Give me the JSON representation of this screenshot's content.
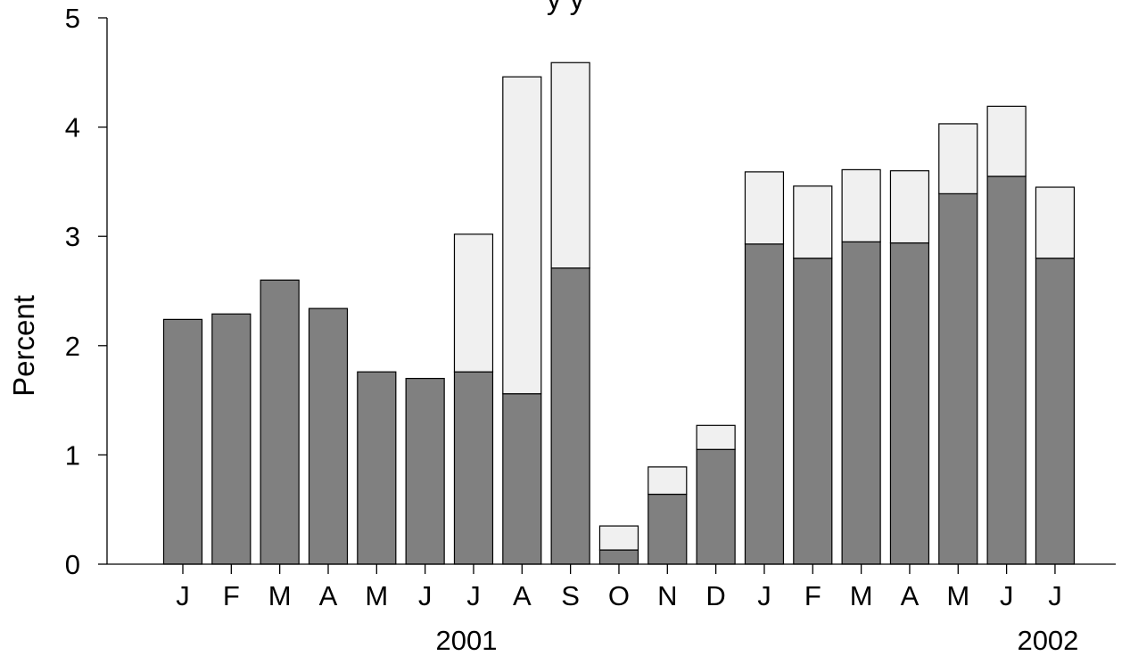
{
  "chart_data": {
    "type": "bar",
    "stacked": true,
    "title": "",
    "title_partial_visible": "y y",
    "xlabel": "",
    "ylabel": "Percent",
    "ylim": [
      0,
      5
    ],
    "yticks": [
      0,
      1,
      2,
      3,
      4,
      5
    ],
    "categories": [
      "J",
      "F",
      "M",
      "A",
      "M",
      "J",
      "J",
      "A",
      "S",
      "O",
      "N",
      "D",
      "J",
      "F",
      "M",
      "A",
      "M",
      "J",
      "J"
    ],
    "years": [
      {
        "label": "2001",
        "under_index": 6
      },
      {
        "label": "2002",
        "under_index": 18
      }
    ],
    "series": [
      {
        "color": "#808080",
        "values": [
          2.24,
          2.29,
          2.6,
          2.34,
          1.76,
          1.7,
          1.76,
          1.56,
          2.71,
          0.13,
          0.64,
          1.05,
          2.93,
          2.8,
          2.95,
          2.94,
          3.39,
          3.55,
          2.8
        ]
      },
      {
        "color": "#f0f0f0",
        "values": [
          0,
          0,
          0,
          0,
          0,
          0,
          1.26,
          2.9,
          1.88,
          0.22,
          0.25,
          0.22,
          0.66,
          0.66,
          0.66,
          0.66,
          0.64,
          0.64,
          0.65
        ]
      }
    ],
    "grid": false,
    "legend": "none"
  }
}
